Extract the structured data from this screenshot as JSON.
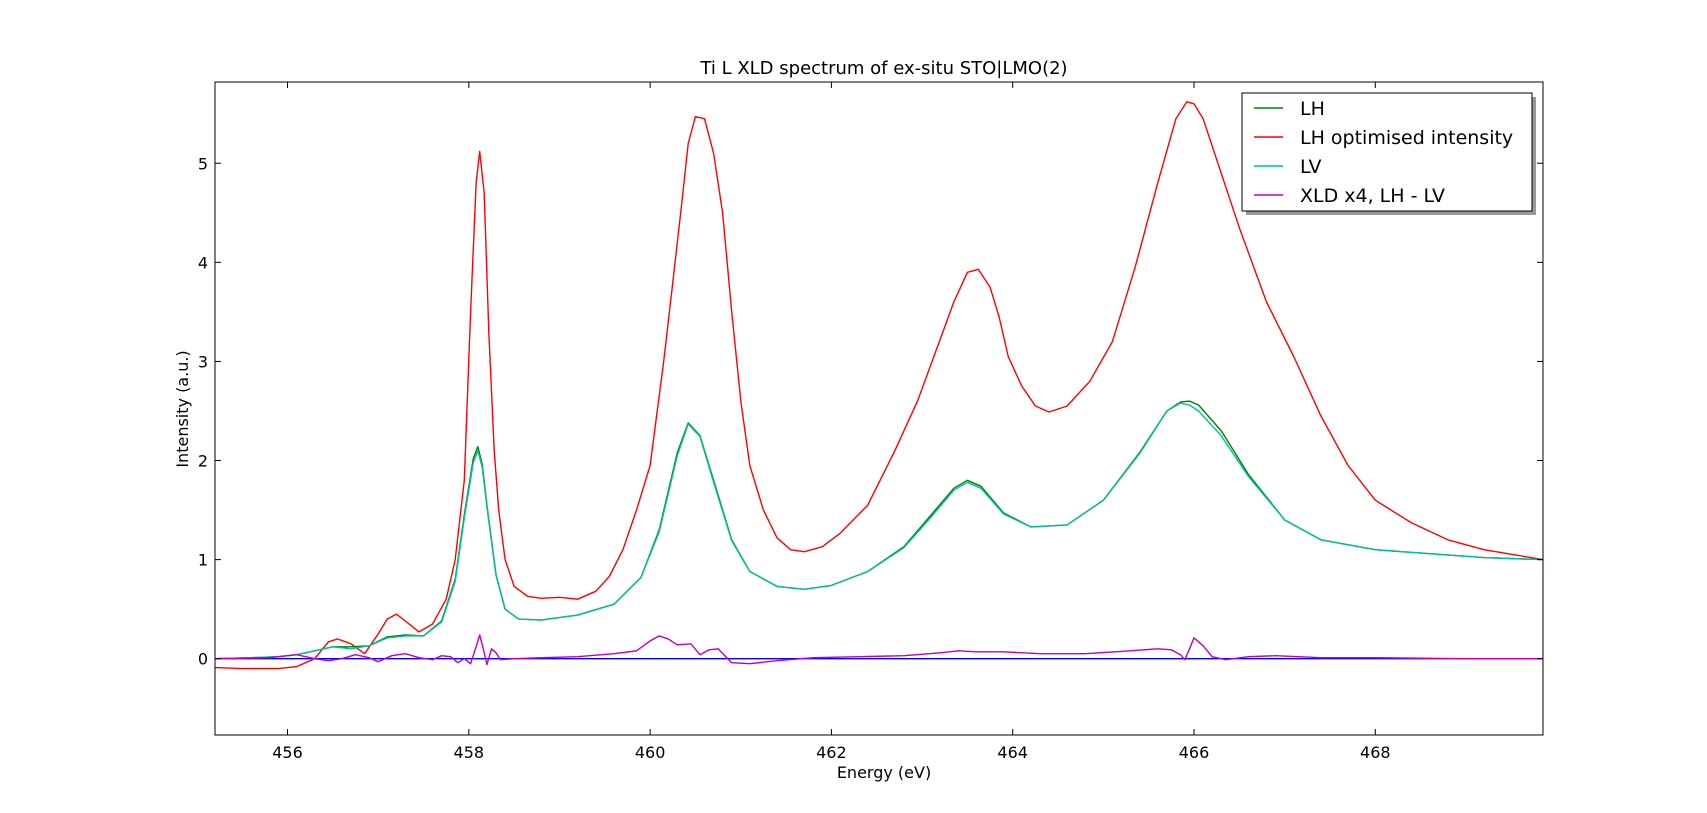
{
  "chart_data": {
    "type": "line",
    "title": "Ti L XLD spectrum of ex-situ STO|LMO(2)",
    "xlabel": "Energy (eV)",
    "ylabel": "Intensity (a.u.)",
    "xlim": [
      455.2,
      469.85
    ],
    "ylim": [
      -0.77,
      5.82
    ],
    "xticks": [
      456,
      458,
      460,
      462,
      464,
      466,
      468
    ],
    "yticks": [
      0,
      1,
      2,
      3,
      4,
      5
    ],
    "legend_position": "top-right",
    "zero_line_color": "#0000ff",
    "series": [
      {
        "name": "LH",
        "color": "#008000",
        "x": [
          455.2,
          455.6,
          455.9,
          456.1,
          456.3,
          456.5,
          456.7,
          456.9,
          457.1,
          457.3,
          457.5,
          457.7,
          457.85,
          457.95,
          458.05,
          458.1,
          458.15,
          458.2,
          458.3,
          458.4,
          458.55,
          458.8,
          459.2,
          459.6,
          459.9,
          460.1,
          460.3,
          460.42,
          460.55,
          460.7,
          460.9,
          461.1,
          461.4,
          461.7,
          462.0,
          462.4,
          462.8,
          463.1,
          463.35,
          463.5,
          463.65,
          463.9,
          464.2,
          464.6,
          465.0,
          465.4,
          465.7,
          465.85,
          465.95,
          466.05,
          466.3,
          466.6,
          467.0,
          467.4,
          468.0,
          468.6,
          469.2,
          469.85
        ],
        "values": [
          0.0,
          0.01,
          0.02,
          0.04,
          0.08,
          0.12,
          0.12,
          0.13,
          0.22,
          0.24,
          0.23,
          0.38,
          0.8,
          1.45,
          2.02,
          2.14,
          1.95,
          1.55,
          0.85,
          0.5,
          0.4,
          0.39,
          0.44,
          0.55,
          0.82,
          1.3,
          2.08,
          2.38,
          2.25,
          1.8,
          1.2,
          0.88,
          0.73,
          0.7,
          0.74,
          0.88,
          1.13,
          1.45,
          1.72,
          1.8,
          1.74,
          1.47,
          1.33,
          1.35,
          1.6,
          2.08,
          2.5,
          2.59,
          2.6,
          2.56,
          2.3,
          1.86,
          1.4,
          1.2,
          1.1,
          1.06,
          1.02,
          1.0
        ]
      },
      {
        "name": "LH optimised intensity",
        "color": "#ff0000",
        "x": [
          455.2,
          455.5,
          455.9,
          456.1,
          456.3,
          456.45,
          456.55,
          456.7,
          456.85,
          457.0,
          457.1,
          457.2,
          457.3,
          457.45,
          457.6,
          457.75,
          457.85,
          457.95,
          458.02,
          458.08,
          458.12,
          458.17,
          458.22,
          458.28,
          458.33,
          458.4,
          458.5,
          458.65,
          458.8,
          459.0,
          459.2,
          459.4,
          459.55,
          459.7,
          459.85,
          460.0,
          460.15,
          460.25,
          460.35,
          460.42,
          460.5,
          460.6,
          460.7,
          460.8,
          460.9,
          461.0,
          461.1,
          461.25,
          461.4,
          461.55,
          461.7,
          461.9,
          462.1,
          462.4,
          462.7,
          462.95,
          463.15,
          463.35,
          463.5,
          463.62,
          463.75,
          463.85,
          463.95,
          464.1,
          464.25,
          464.4,
          464.6,
          464.85,
          465.1,
          465.35,
          465.6,
          465.8,
          465.92,
          466.0,
          466.1,
          466.3,
          466.5,
          466.8,
          467.1,
          467.4,
          467.7,
          468.0,
          468.4,
          468.8,
          469.2,
          469.85
        ],
        "values": [
          -0.09,
          -0.1,
          -0.1,
          -0.08,
          0.0,
          0.17,
          0.2,
          0.15,
          0.05,
          0.25,
          0.4,
          0.45,
          0.38,
          0.27,
          0.35,
          0.6,
          1.0,
          1.8,
          3.5,
          4.8,
          5.12,
          4.7,
          3.3,
          2.1,
          1.5,
          1.0,
          0.73,
          0.63,
          0.61,
          0.62,
          0.6,
          0.68,
          0.83,
          1.1,
          1.5,
          1.95,
          3.0,
          3.8,
          4.6,
          5.2,
          5.47,
          5.45,
          5.1,
          4.5,
          3.5,
          2.6,
          1.95,
          1.5,
          1.22,
          1.1,
          1.08,
          1.13,
          1.27,
          1.55,
          2.1,
          2.6,
          3.1,
          3.6,
          3.9,
          3.93,
          3.75,
          3.45,
          3.05,
          2.75,
          2.55,
          2.49,
          2.55,
          2.8,
          3.2,
          3.95,
          4.8,
          5.45,
          5.62,
          5.6,
          5.45,
          4.9,
          4.35,
          3.6,
          3.05,
          2.45,
          1.95,
          1.6,
          1.37,
          1.2,
          1.1,
          1.0
        ]
      },
      {
        "name": "LV",
        "color": "#00bfa0",
        "x": [
          455.2,
          455.6,
          455.9,
          456.1,
          456.3,
          456.5,
          456.7,
          456.9,
          457.1,
          457.3,
          457.5,
          457.7,
          457.85,
          457.95,
          458.05,
          458.1,
          458.15,
          458.2,
          458.3,
          458.4,
          458.55,
          458.8,
          459.2,
          459.6,
          459.9,
          460.1,
          460.3,
          460.42,
          460.55,
          460.7,
          460.9,
          461.1,
          461.4,
          461.7,
          462.0,
          462.4,
          462.8,
          463.1,
          463.35,
          463.5,
          463.65,
          463.9,
          464.2,
          464.6,
          465.0,
          465.4,
          465.7,
          465.85,
          465.95,
          466.05,
          466.3,
          466.6,
          467.0,
          467.4,
          468.0,
          468.6,
          469.2,
          469.85
        ],
        "values": [
          0.0,
          0.01,
          0.02,
          0.04,
          0.08,
          0.12,
          0.1,
          0.13,
          0.21,
          0.23,
          0.23,
          0.37,
          0.78,
          1.42,
          1.98,
          2.1,
          1.92,
          1.53,
          0.84,
          0.5,
          0.4,
          0.39,
          0.44,
          0.55,
          0.82,
          1.28,
          2.05,
          2.37,
          2.24,
          1.78,
          1.19,
          0.88,
          0.73,
          0.7,
          0.74,
          0.88,
          1.12,
          1.43,
          1.7,
          1.78,
          1.72,
          1.46,
          1.33,
          1.35,
          1.6,
          2.07,
          2.5,
          2.58,
          2.56,
          2.5,
          2.25,
          1.84,
          1.4,
          1.2,
          1.1,
          1.06,
          1.02,
          1.0
        ]
      },
      {
        "name": "XLD x4, LH - LV",
        "color": "#bf00bf",
        "x": [
          455.2,
          455.8,
          456.1,
          456.3,
          456.45,
          456.6,
          456.75,
          456.9,
          457.0,
          457.15,
          457.3,
          457.45,
          457.6,
          457.7,
          457.8,
          457.88,
          457.95,
          458.02,
          458.08,
          458.12,
          458.16,
          458.2,
          458.25,
          458.3,
          458.35,
          458.5,
          458.8,
          459.2,
          459.6,
          459.85,
          460.0,
          460.1,
          460.2,
          460.3,
          460.45,
          460.55,
          460.65,
          460.75,
          460.9,
          461.1,
          461.4,
          461.8,
          462.3,
          462.8,
          463.2,
          463.4,
          463.6,
          463.9,
          464.3,
          464.8,
          465.3,
          465.6,
          465.75,
          465.85,
          465.9,
          465.95,
          466.0,
          466.1,
          466.2,
          466.35,
          466.6,
          466.9,
          467.4,
          468.0,
          469.0,
          469.85
        ],
        "values": [
          0.0,
          0.01,
          0.04,
          0.0,
          -0.02,
          0.0,
          0.04,
          0.01,
          -0.03,
          0.03,
          0.05,
          0.01,
          -0.01,
          0.03,
          0.02,
          -0.04,
          0.0,
          -0.05,
          0.12,
          0.24,
          0.1,
          -0.06,
          0.1,
          0.06,
          -0.01,
          0.0,
          0.01,
          0.02,
          0.05,
          0.08,
          0.18,
          0.23,
          0.2,
          0.14,
          0.15,
          0.04,
          0.09,
          0.1,
          -0.04,
          -0.05,
          -0.02,
          0.01,
          0.02,
          0.03,
          0.06,
          0.08,
          0.07,
          0.07,
          0.05,
          0.05,
          0.08,
          0.1,
          0.09,
          0.04,
          -0.01,
          0.1,
          0.21,
          0.13,
          0.02,
          -0.01,
          0.02,
          0.03,
          0.01,
          0.01,
          0.0,
          0.0
        ]
      }
    ]
  }
}
